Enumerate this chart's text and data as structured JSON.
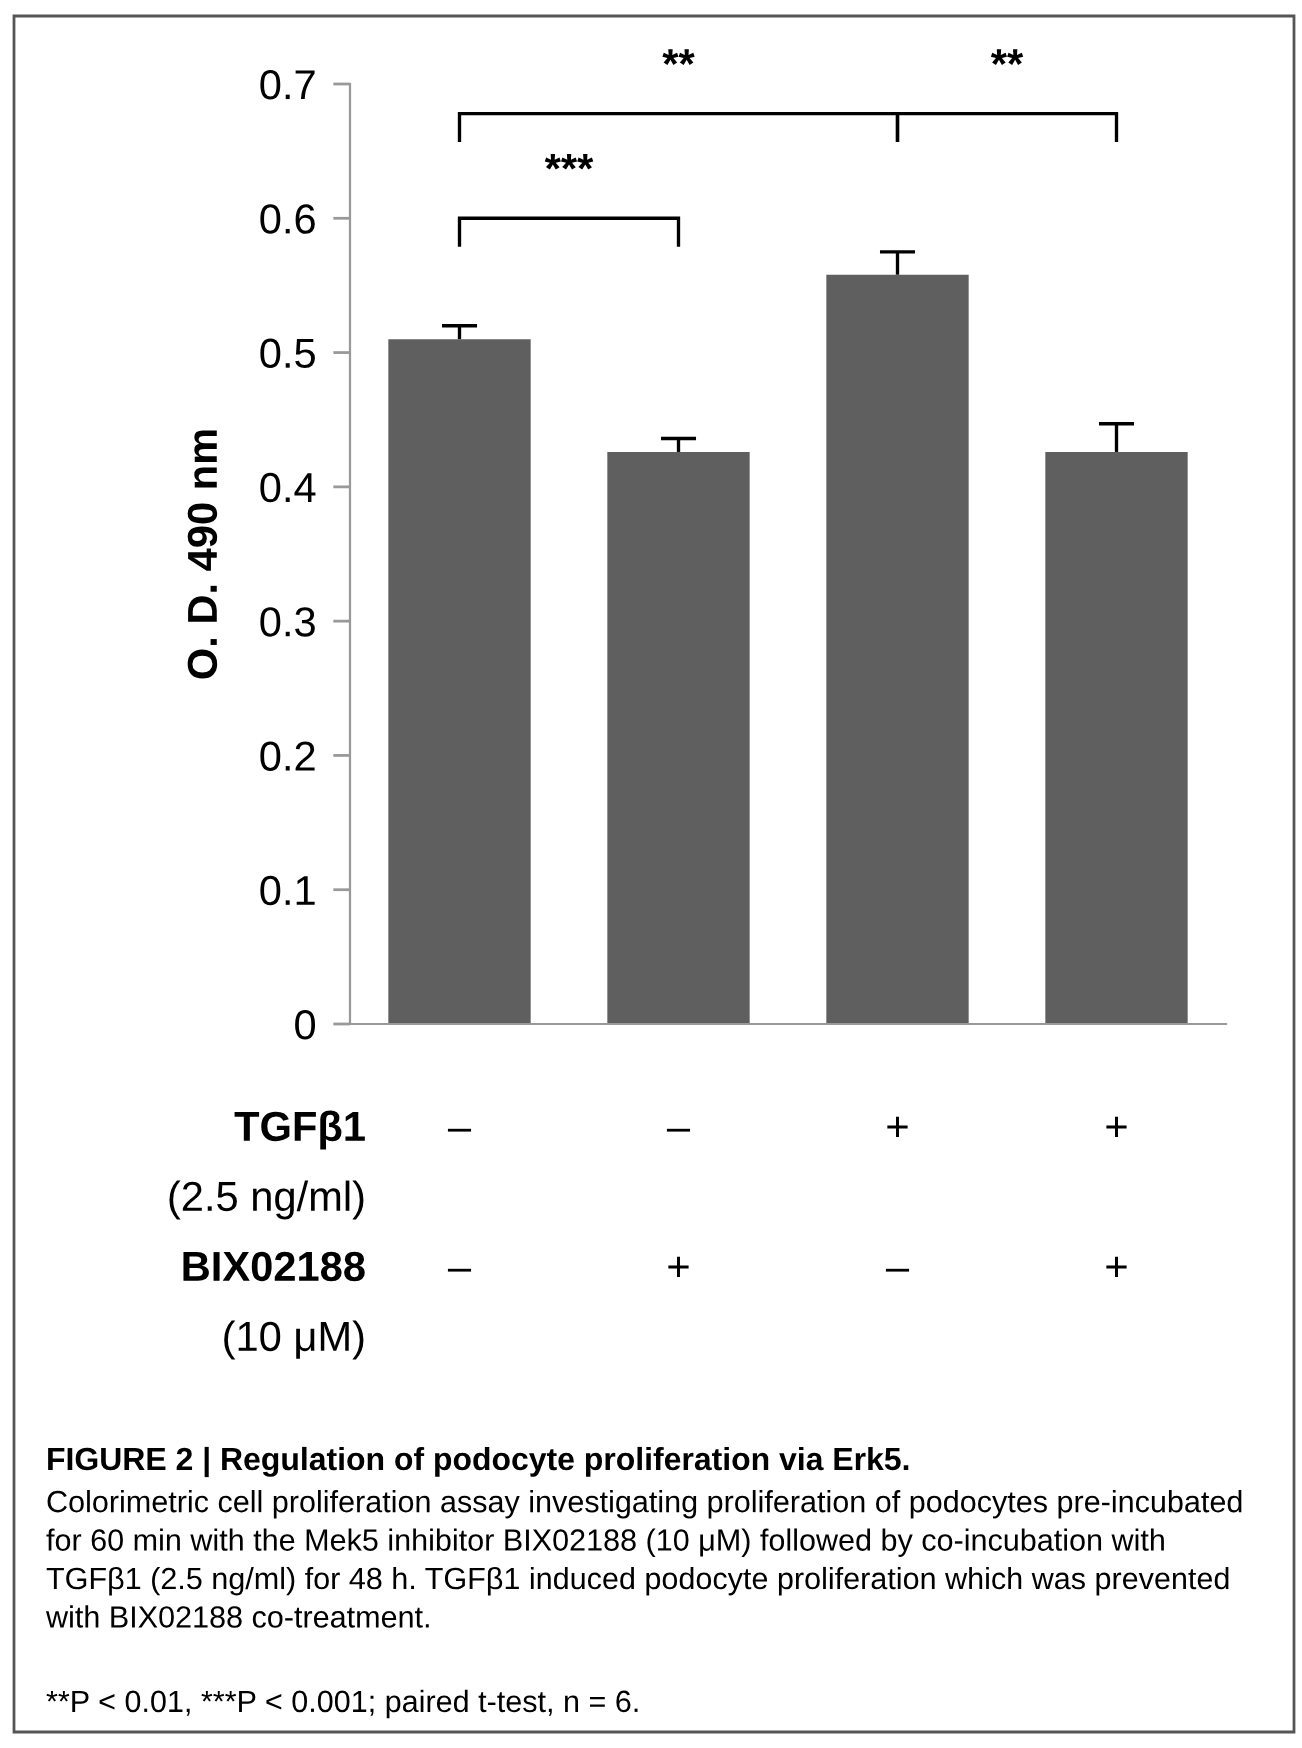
{
  "chart_data": {
    "type": "bar",
    "ylabel": "O. D. 490 nm",
    "categories": [
      null,
      null,
      null,
      null
    ],
    "values": [
      0.51,
      0.426,
      0.558,
      0.426
    ],
    "errors": [
      [
        0.51,
        0.52
      ],
      [
        0.426,
        0.436
      ],
      [
        0.558,
        0.575
      ],
      [
        0.426,
        0.447
      ]
    ],
    "color": "#5f5f5f",
    "ylim": [
      0,
      0.7
    ],
    "yticks": [
      0,
      0.1,
      0.2,
      0.3,
      0.4,
      0.5,
      0.6,
      0.7
    ],
    "grid": false,
    "annotations": [
      "***",
      "**",
      "**",
      "TGFβ1",
      "(2.5 ng/ml)",
      "BIX02188",
      "(10 μM)",
      "–",
      "–",
      "+",
      "+",
      "–",
      "+",
      "–",
      "+",
      "FIGURE 2 | Regulation of podocyte proliferation via Erk5.",
      "Colorimetric cell proliferation assay investigating proliferation of podocytes pre-incubated for 60 min with the Mek5 inhibitor BIX02188 (10 μM) followed by co-incubation with TGFβ1 (2.5 ng/ml) for 48 h. TGFβ1 induced podocyte proliferation which was prevented with BIX02188 co-treatment.",
      "**P < 0.01, ***P < 0.001; paired t-test, n = 6."
    ]
  }
}
